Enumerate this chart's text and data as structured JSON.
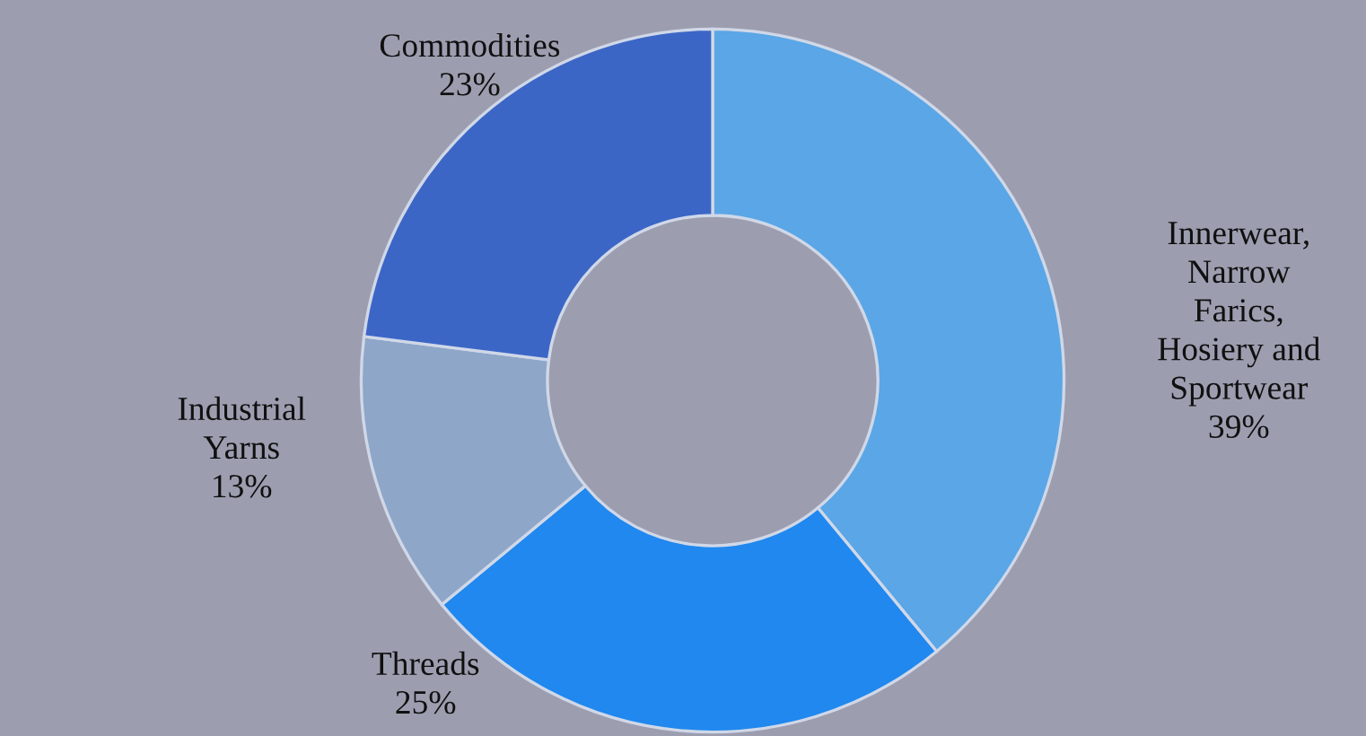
{
  "chart_data": {
    "type": "donut",
    "categories": [
      "Innerwear,\nNarrow\nFarics,\nHosiery and\nSportwear",
      "Threads",
      "Industrial\nYarns",
      "Commodities"
    ],
    "values": [
      39,
      25,
      13,
      23
    ],
    "value_labels": [
      "39%",
      "25%",
      "13%",
      "23%"
    ],
    "colors": [
      "#5aa6e6",
      "#2088ee",
      "#8ea6c8",
      "#3c66c6"
    ],
    "legend": false
  }
}
